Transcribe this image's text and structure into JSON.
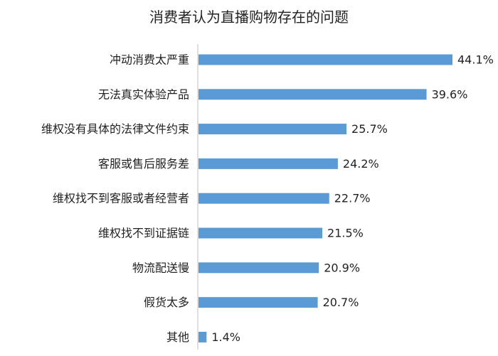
{
  "chart_data": {
    "type": "bar",
    "orientation": "horizontal",
    "title": "消费者认为直播购物存在的问题",
    "categories": [
      "冲动消费太严重",
      "无法真实体验产品",
      "维权没有具体的法律文件约束",
      "客服或售后服务差",
      "维权找不到客服或者经营者",
      "维权找不到证据链",
      "物流配送慢",
      "假货太多",
      "其他"
    ],
    "values": [
      44.1,
      39.6,
      25.7,
      24.2,
      22.7,
      21.5,
      20.9,
      20.7,
      1.4
    ],
    "value_labels": [
      "44.1%",
      "39.6%",
      "25.7%",
      "24.2%",
      "22.7%",
      "21.5%",
      "20.9%",
      "20.7%",
      "1.4%"
    ],
    "bar_color": "#5b9bd5",
    "xlabel": "",
    "ylabel": "",
    "xlim": [
      0,
      44.1
    ],
    "grid": false,
    "legend": "none"
  }
}
